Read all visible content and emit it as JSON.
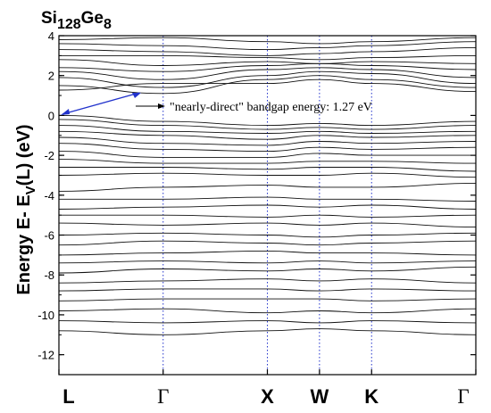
{
  "chart_data": {
    "type": "line",
    "title": {
      "base": "Si",
      "sub1": "128",
      "mid": "Ge",
      "sub2": "8"
    },
    "ylabel": {
      "pre": "Energy E- E",
      "sub": "V",
      "post": "(L) (eV)"
    },
    "xlabel": "",
    "ylim": [
      -13,
      4
    ],
    "y_ticks": [
      4,
      2,
      0,
      -2,
      -4,
      -6,
      -8,
      -10,
      -12
    ],
    "high_symmetry_points": [
      {
        "label": "L",
        "x": 0.0,
        "font": "sans"
      },
      {
        "label": "Γ",
        "x": 1.0,
        "font": "serif"
      },
      {
        "label": "X",
        "x": 2.0,
        "font": "sans"
      },
      {
        "label": "W",
        "x": 2.5,
        "font": "sans"
      },
      {
        "label": "K",
        "x": 3.0,
        "font": "sans"
      },
      {
        "label": "Γ",
        "x": 4.0,
        "font": "serif"
      }
    ],
    "annotation": {
      "text": "\"nearly-direct\" bandgap energy: 1.27 eV",
      "value_eV": 1.27
    },
    "colors": {
      "bands": "#111111",
      "symmetry_lines": "#2233cc",
      "arrow": "#2233cc"
    },
    "bands_at_symmetry_points": [
      [
        3.8,
        3.9,
        3.7,
        3.6,
        3.7,
        3.9
      ],
      [
        3.6,
        3.5,
        3.3,
        3.4,
        3.5,
        3.7
      ],
      [
        3.3,
        3.2,
        3.0,
        3.1,
        3.2,
        3.4
      ],
      [
        3.0,
        3.0,
        2.9,
        2.8,
        2.9,
        3.0
      ],
      [
        2.8,
        2.5,
        2.7,
        2.6,
        2.7,
        2.6
      ],
      [
        2.4,
        2.2,
        2.5,
        2.6,
        2.5,
        2.3
      ],
      [
        2.2,
        1.8,
        2.3,
        2.4,
        2.3,
        1.9
      ],
      [
        1.9,
        1.4,
        2.0,
        2.2,
        2.1,
        1.6
      ],
      [
        1.5,
        1.1,
        1.8,
        2.0,
        1.8,
        1.4
      ],
      [
        1.27,
        1.6,
        1.6,
        1.8,
        1.6,
        1.2
      ],
      [
        0.0,
        -0.3,
        -0.5,
        -0.4,
        -0.5,
        -0.3
      ],
      [
        -0.2,
        -0.5,
        -0.7,
        -0.6,
        -0.7,
        -0.5
      ],
      [
        -0.5,
        -0.8,
        -0.9,
        -0.8,
        -0.9,
        -0.8
      ],
      [
        -0.8,
        -1.0,
        -1.2,
        -1.0,
        -1.1,
        -1.0
      ],
      [
        -1.1,
        -1.4,
        -1.5,
        -1.3,
        -1.4,
        -1.3
      ],
      [
        -1.4,
        -1.7,
        -1.8,
        -1.6,
        -1.7,
        -1.6
      ],
      [
        -1.8,
        -2.1,
        -2.1,
        -1.9,
        -2.0,
        -2.0
      ],
      [
        -2.2,
        -2.4,
        -2.4,
        -2.3,
        -2.3,
        -2.4
      ],
      [
        -2.6,
        -2.6,
        -2.7,
        -2.6,
        -2.6,
        -2.8
      ],
      [
        -3.0,
        -2.9,
        -3.0,
        -3.0,
        -2.9,
        -3.1
      ],
      [
        -3.8,
        -3.6,
        -3.5,
        -3.6,
        -3.6,
        -3.4
      ],
      [
        -4.2,
        -4.2,
        -4.1,
        -4.2,
        -4.2,
        -4.3
      ],
      [
        -4.7,
        -4.6,
        -4.5,
        -4.6,
        -4.5,
        -4.7
      ],
      [
        -5.0,
        -5.0,
        -5.1,
        -5.0,
        -5.1,
        -5.0
      ],
      [
        -5.4,
        -5.5,
        -5.4,
        -5.5,
        -5.4,
        -5.6
      ],
      [
        -6.0,
        -5.9,
        -6.0,
        -6.1,
        -6.0,
        -5.9
      ],
      [
        -6.5,
        -6.3,
        -6.4,
        -6.5,
        -6.4,
        -6.3
      ],
      [
        -7.0,
        -6.9,
        -6.8,
        -6.9,
        -6.9,
        -7.0
      ],
      [
        -7.4,
        -7.3,
        -7.4,
        -7.3,
        -7.4,
        -7.3
      ],
      [
        -7.9,
        -7.7,
        -7.8,
        -7.7,
        -7.8,
        -7.6
      ],
      [
        -8.4,
        -8.3,
        -8.2,
        -8.3,
        -8.2,
        -8.4
      ],
      [
        -8.8,
        -8.7,
        -8.7,
        -8.8,
        -8.7,
        -8.8
      ],
      [
        -9.3,
        -9.2,
        -9.2,
        -9.2,
        -9.3,
        -9.2
      ],
      [
        -9.8,
        -9.7,
        -9.9,
        -9.8,
        -9.9,
        -9.7
      ],
      [
        -10.3,
        -10.4,
        -10.3,
        -10.4,
        -10.3,
        -10.4
      ],
      [
        -10.8,
        -11.0,
        -10.8,
        -10.7,
        -10.8,
        -11.0
      ]
    ]
  }
}
